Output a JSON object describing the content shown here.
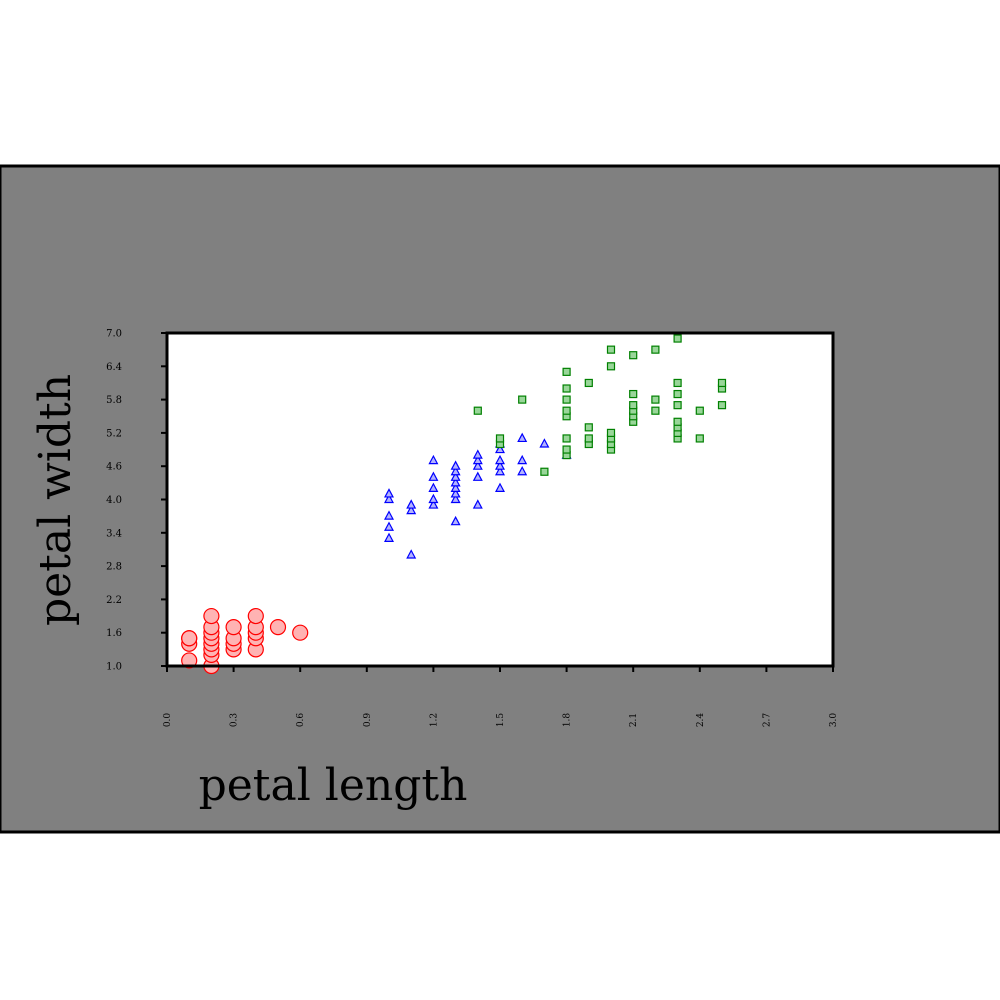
{
  "chart_data": {
    "type": "scatter",
    "xlabel": "petal length",
    "ylabel": "petal width",
    "xlim": [
      0.0,
      3.0
    ],
    "ylim": [
      1.0,
      7.0
    ],
    "xticks": [
      "0.0",
      "0.3",
      "0.6",
      "0.9",
      "1.2",
      "1.5",
      "1.8",
      "2.1",
      "2.4",
      "2.7",
      "3.0"
    ],
    "yticks": [
      "1.0",
      "1.6",
      "2.2",
      "2.8",
      "3.4",
      "4.0",
      "4.6",
      "5.2",
      "5.8",
      "6.4",
      "7.0"
    ],
    "grid": false,
    "legend": "none",
    "colors": {
      "figure_background": "#808080",
      "plot_background": "#ffffff",
      "axis": "#000000"
    },
    "series": [
      {
        "marker": "circle",
        "stroke": "#ff0000",
        "fill": "#ffb3b3",
        "points": [
          [
            0.1,
            1.1
          ],
          [
            0.1,
            1.4
          ],
          [
            0.1,
            1.5
          ],
          [
            0.1,
            1.5
          ],
          [
            0.2,
            1.0
          ],
          [
            0.2,
            1.2
          ],
          [
            0.2,
            1.3
          ],
          [
            0.2,
            1.4
          ],
          [
            0.2,
            1.5
          ],
          [
            0.2,
            1.6
          ],
          [
            0.2,
            1.7
          ],
          [
            0.2,
            1.9
          ],
          [
            0.3,
            1.3
          ],
          [
            0.3,
            1.4
          ],
          [
            0.3,
            1.5
          ],
          [
            0.3,
            1.7
          ],
          [
            0.4,
            1.3
          ],
          [
            0.4,
            1.5
          ],
          [
            0.4,
            1.6
          ],
          [
            0.4,
            1.7
          ],
          [
            0.4,
            1.9
          ],
          [
            0.5,
            1.7
          ],
          [
            0.6,
            1.6
          ]
        ]
      },
      {
        "marker": "triangle",
        "stroke": "#0000ff",
        "fill": "#b3b3ff",
        "points": [
          [
            1.0,
            3.3
          ],
          [
            1.0,
            3.5
          ],
          [
            1.0,
            3.7
          ],
          [
            1.0,
            4.0
          ],
          [
            1.0,
            4.1
          ],
          [
            1.1,
            3.0
          ],
          [
            1.1,
            3.8
          ],
          [
            1.1,
            3.9
          ],
          [
            1.2,
            3.9
          ],
          [
            1.2,
            4.0
          ],
          [
            1.2,
            4.2
          ],
          [
            1.2,
            4.4
          ],
          [
            1.2,
            4.7
          ],
          [
            1.3,
            3.6
          ],
          [
            1.3,
            4.0
          ],
          [
            1.3,
            4.1
          ],
          [
            1.3,
            4.2
          ],
          [
            1.3,
            4.3
          ],
          [
            1.3,
            4.4
          ],
          [
            1.3,
            4.5
          ],
          [
            1.3,
            4.6
          ],
          [
            1.4,
            3.9
          ],
          [
            1.4,
            4.4
          ],
          [
            1.4,
            4.6
          ],
          [
            1.4,
            4.7
          ],
          [
            1.4,
            4.8
          ],
          [
            1.5,
            4.2
          ],
          [
            1.5,
            4.5
          ],
          [
            1.5,
            4.6
          ],
          [
            1.5,
            4.7
          ],
          [
            1.5,
            4.9
          ],
          [
            1.5,
            5.0
          ],
          [
            1.6,
            4.5
          ],
          [
            1.6,
            4.7
          ],
          [
            1.6,
            5.1
          ],
          [
            1.7,
            5.0
          ],
          [
            1.8,
            4.8
          ]
        ]
      },
      {
        "marker": "square",
        "stroke": "#008000",
        "fill": "#99d699",
        "points": [
          [
            1.4,
            5.6
          ],
          [
            1.5,
            5.0
          ],
          [
            1.5,
            5.1
          ],
          [
            1.6,
            5.8
          ],
          [
            1.7,
            4.5
          ],
          [
            1.8,
            4.8
          ],
          [
            1.8,
            4.9
          ],
          [
            1.8,
            5.1
          ],
          [
            1.8,
            5.5
          ],
          [
            1.8,
            5.6
          ],
          [
            1.8,
            5.8
          ],
          [
            1.8,
            6.0
          ],
          [
            1.8,
            6.3
          ],
          [
            1.9,
            5.0
          ],
          [
            1.9,
            5.1
          ],
          [
            1.9,
            5.3
          ],
          [
            1.9,
            6.1
          ],
          [
            2.0,
            4.9
          ],
          [
            2.0,
            5.0
          ],
          [
            2.0,
            5.1
          ],
          [
            2.0,
            5.2
          ],
          [
            2.0,
            6.4
          ],
          [
            2.0,
            6.7
          ],
          [
            2.1,
            5.4
          ],
          [
            2.1,
            5.5
          ],
          [
            2.1,
            5.6
          ],
          [
            2.1,
            5.7
          ],
          [
            2.1,
            5.9
          ],
          [
            2.1,
            6.6
          ],
          [
            2.2,
            5.6
          ],
          [
            2.2,
            5.8
          ],
          [
            2.2,
            6.7
          ],
          [
            2.3,
            5.1
          ],
          [
            2.3,
            5.2
          ],
          [
            2.3,
            5.3
          ],
          [
            2.3,
            5.4
          ],
          [
            2.3,
            5.7
          ],
          [
            2.3,
            5.9
          ],
          [
            2.3,
            6.1
          ],
          [
            2.3,
            6.9
          ],
          [
            2.4,
            5.1
          ],
          [
            2.4,
            5.6
          ],
          [
            2.5,
            5.7
          ],
          [
            2.5,
            6.0
          ],
          [
            2.5,
            6.1
          ]
        ]
      }
    ]
  }
}
